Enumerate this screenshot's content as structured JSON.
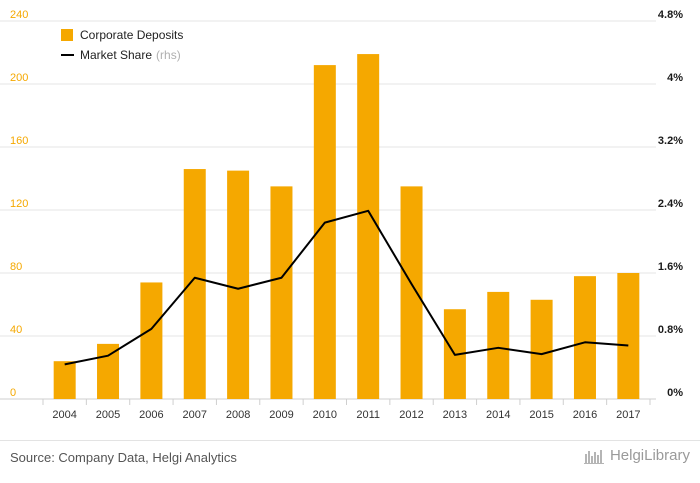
{
  "chart_data": {
    "type": "bar",
    "categories": [
      "2004",
      "2005",
      "2006",
      "2007",
      "2008",
      "2009",
      "2010",
      "2011",
      "2012",
      "2013",
      "2014",
      "2015",
      "2016",
      "2017"
    ],
    "series": [
      {
        "name": "Corporate Deposits",
        "type": "bar",
        "axis": "left",
        "color": "#f5a800",
        "values": [
          24,
          35,
          74,
          146,
          145,
          135,
          212,
          219,
          135,
          57,
          68,
          63,
          78,
          80
        ]
      },
      {
        "name": "Market Share",
        "type": "line",
        "axis": "right",
        "color": "#000000",
        "values": [
          0.44,
          0.55,
          0.89,
          1.54,
          1.4,
          1.54,
          2.24,
          2.39,
          1.46,
          0.56,
          0.65,
          0.57,
          0.72,
          0.68
        ]
      }
    ],
    "left_axis": {
      "ylim": [
        0,
        240
      ],
      "ticks": [
        "0",
        "40",
        "80",
        "120",
        "160",
        "200",
        "240"
      ]
    },
    "right_axis": {
      "ylim": [
        0,
        4.8
      ],
      "ticks": [
        "0%",
        "0.8%",
        "1.6%",
        "2.4%",
        "3.2%",
        "4%",
        "4.8%"
      ]
    },
    "legend": {
      "position": "top-left",
      "items": [
        {
          "label": "Corporate Deposits",
          "suffix": ""
        },
        {
          "label": "Market Share",
          "suffix": "(rhs)"
        }
      ]
    },
    "grid": true
  },
  "footer": {
    "source": "Source: Company Data, Helgi Analytics",
    "brand": "HelgiLibrary"
  }
}
